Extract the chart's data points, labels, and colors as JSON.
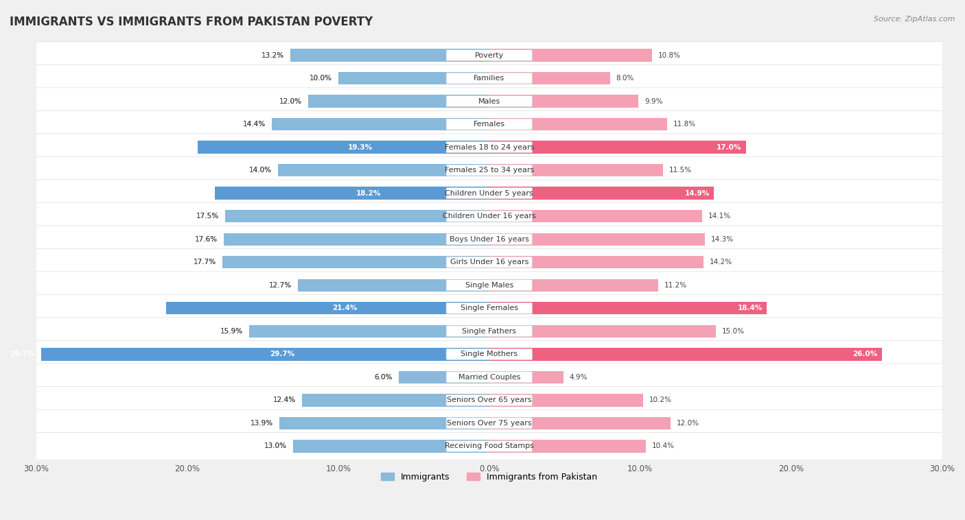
{
  "title": "IMMIGRANTS VS IMMIGRANTS FROM PAKISTAN POVERTY",
  "source": "Source: ZipAtlas.com",
  "categories": [
    "Poverty",
    "Families",
    "Males",
    "Females",
    "Females 18 to 24 years",
    "Females 25 to 34 years",
    "Children Under 5 years",
    "Children Under 16 years",
    "Boys Under 16 years",
    "Girls Under 16 years",
    "Single Males",
    "Single Females",
    "Single Fathers",
    "Single Mothers",
    "Married Couples",
    "Seniors Over 65 years",
    "Seniors Over 75 years",
    "Receiving Food Stamps"
  ],
  "immigrants": [
    13.2,
    10.0,
    12.0,
    14.4,
    19.3,
    14.0,
    18.2,
    17.5,
    17.6,
    17.7,
    12.7,
    21.4,
    15.9,
    29.7,
    6.0,
    12.4,
    13.9,
    13.0
  ],
  "pakistan": [
    10.8,
    8.0,
    9.9,
    11.8,
    17.0,
    11.5,
    14.9,
    14.1,
    14.3,
    14.2,
    11.2,
    18.4,
    15.0,
    26.0,
    4.9,
    10.2,
    12.0,
    10.4
  ],
  "immigrants_color": "#89b9db",
  "pakistan_color": "#f4a0b5",
  "immigrants_highlight_color": "#5b9bd5",
  "pakistan_highlight_color": "#f06080",
  "highlight_rows": [
    4,
    6,
    11,
    13
  ],
  "axis_max": 30.0,
  "background_color": "#f0f0f0",
  "row_bg_color": "#ffffff",
  "row_alt_color": "#e8e8e8",
  "title_fontsize": 12,
  "label_fontsize": 8.0,
  "value_fontsize": 7.5,
  "legend_fontsize": 9,
  "source_fontsize": 8
}
